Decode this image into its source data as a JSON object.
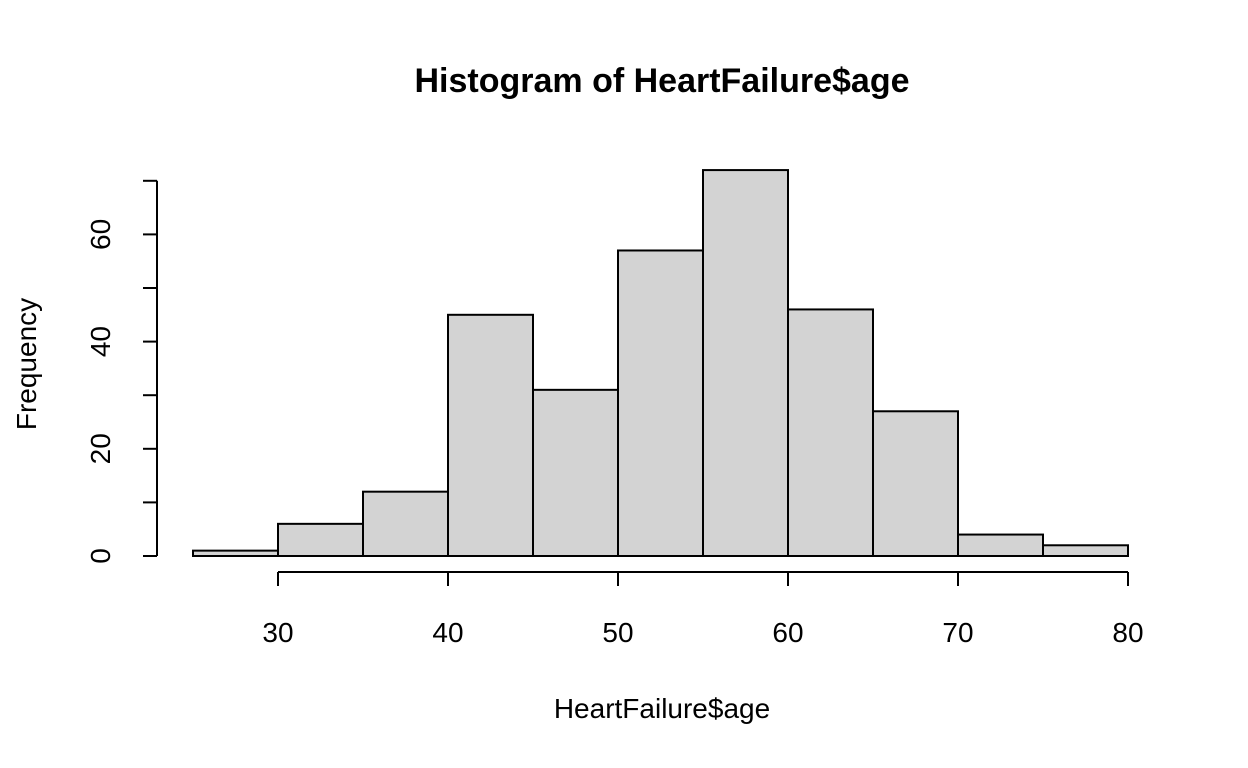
{
  "chart_data": {
    "type": "bar",
    "title": "Histogram of HeartFailure$age",
    "xlabel": "HeartFailure$age",
    "ylabel": "Frequency",
    "bins": [
      {
        "from": 25,
        "to": 30,
        "count": 1
      },
      {
        "from": 30,
        "to": 35,
        "count": 6
      },
      {
        "from": 35,
        "to": 40,
        "count": 12
      },
      {
        "from": 40,
        "to": 45,
        "count": 45
      },
      {
        "from": 45,
        "to": 50,
        "count": 31
      },
      {
        "from": 50,
        "to": 55,
        "count": 57
      },
      {
        "from": 55,
        "to": 60,
        "count": 72
      },
      {
        "from": 60,
        "to": 65,
        "count": 46
      },
      {
        "from": 65,
        "to": 70,
        "count": 27
      },
      {
        "from": 70,
        "to": 75,
        "count": 4
      },
      {
        "from": 75,
        "to": 80,
        "count": 2
      }
    ],
    "xlim": [
      25,
      80
    ],
    "ylim": [
      0,
      72
    ],
    "x_ticks": [
      "30",
      "40",
      "50",
      "60",
      "70",
      "80"
    ],
    "x_minor_ticks": [
      30,
      40,
      50,
      60,
      70,
      80
    ],
    "y_ticks": [
      "0",
      "20",
      "40",
      "60"
    ],
    "y_minor_ticks": [
      0,
      10,
      20,
      30,
      40,
      50,
      60,
      70
    ],
    "bar_color": "#d3d3d3",
    "grid": false
  }
}
